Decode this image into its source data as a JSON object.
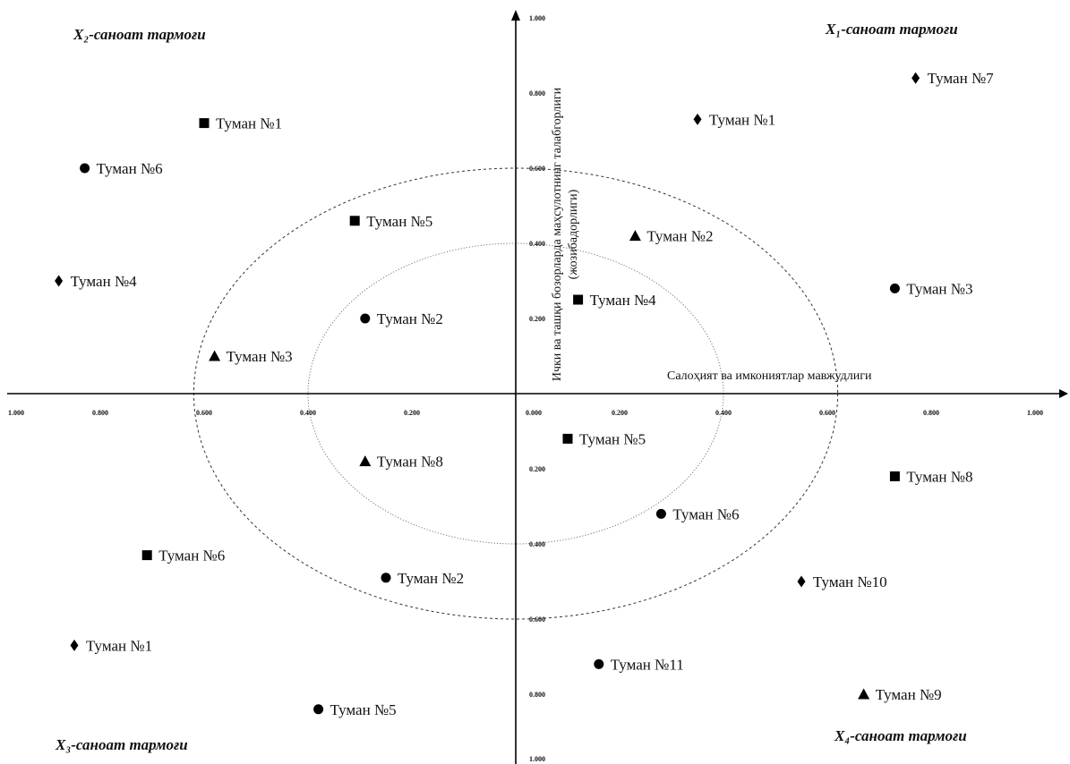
{
  "chart_data": {
    "type": "scatter",
    "title": "",
    "xlabel": "Салоҳият ва имкониятлар мавжудлиги",
    "ylabel": "Ички ва ташқи бозорларда маҳсулотнинг талабгорлиги (жозибадорлиги)",
    "xlim": [
      -1.0,
      1.0
    ],
    "ylim": [
      -1.0,
      1.0
    ],
    "grid": false,
    "x_ticks": [
      "1.000",
      "0.800",
      "0.600",
      "0.400",
      "0.200",
      "0.000",
      "0.200",
      "0.400",
      "0.600",
      "0.800",
      "1.000"
    ],
    "y_ticks_top": [
      "1.000",
      "0.800",
      "0.600",
      "0.400",
      "0.200"
    ],
    "y_ticks_bottom": [
      "0.200",
      "0.400",
      "0.600",
      "0.800",
      "1.000"
    ],
    "quadrants": [
      {
        "id": "q1",
        "label": "X₁-саноат тармоғи"
      },
      {
        "id": "q2",
        "label": "X₂-саноат тармоғи"
      },
      {
        "id": "q3",
        "label": "X₃-саноат тармоғи"
      },
      {
        "id": "q4",
        "label": "X₄-саноат тармоғи"
      }
    ],
    "circles": [
      {
        "rx": 0.4,
        "ry": 0.4,
        "style": "dotted"
      },
      {
        "rx": 0.62,
        "ry": 0.6,
        "style": "dashed"
      }
    ],
    "points": [
      {
        "label": "Туман №1",
        "x": 0.35,
        "y": 0.73,
        "marker": "diamond"
      },
      {
        "label": "Туман №7",
        "x": 0.77,
        "y": 0.84,
        "marker": "diamond"
      },
      {
        "label": "Туман №2",
        "x": 0.23,
        "y": 0.42,
        "marker": "triangle"
      },
      {
        "label": "Туман №4",
        "x": 0.12,
        "y": 0.25,
        "marker": "square"
      },
      {
        "label": "Туман №3",
        "x": 0.73,
        "y": 0.28,
        "marker": "circle"
      },
      {
        "label": "Туман №1",
        "x": -0.6,
        "y": 0.72,
        "marker": "square"
      },
      {
        "label": "Туман №6",
        "x": -0.83,
        "y": 0.6,
        "marker": "circle"
      },
      {
        "label": "Туман №5",
        "x": -0.31,
        "y": 0.46,
        "marker": "square"
      },
      {
        "label": "Туман №4",
        "x": -0.88,
        "y": 0.3,
        "marker": "diamond"
      },
      {
        "label": "Туман №2",
        "x": -0.29,
        "y": 0.2,
        "marker": "circle"
      },
      {
        "label": "Туман №3",
        "x": -0.58,
        "y": 0.1,
        "marker": "triangle"
      },
      {
        "label": "Туман №5",
        "x": 0.1,
        "y": -0.12,
        "marker": "square"
      },
      {
        "label": "Туман №8",
        "x": 0.73,
        "y": -0.22,
        "marker": "square"
      },
      {
        "label": "Туман №6",
        "x": 0.28,
        "y": -0.32,
        "marker": "circle"
      },
      {
        "label": "Туман №10",
        "x": 0.55,
        "y": -0.5,
        "marker": "diamond"
      },
      {
        "label": "Туман №11",
        "x": 0.16,
        "y": -0.72,
        "marker": "circle"
      },
      {
        "label": "Туман №9",
        "x": 0.67,
        "y": -0.8,
        "marker": "triangle"
      },
      {
        "label": "Туман №8",
        "x": -0.29,
        "y": -0.18,
        "marker": "triangle"
      },
      {
        "label": "Туман №6",
        "x": -0.71,
        "y": -0.43,
        "marker": "square"
      },
      {
        "label": "Туман №2",
        "x": -0.25,
        "y": -0.49,
        "marker": "circle"
      },
      {
        "label": "Туман №1",
        "x": -0.85,
        "y": -0.67,
        "marker": "diamond"
      },
      {
        "label": "Туман №5",
        "x": -0.38,
        "y": -0.84,
        "marker": "circle"
      }
    ]
  }
}
